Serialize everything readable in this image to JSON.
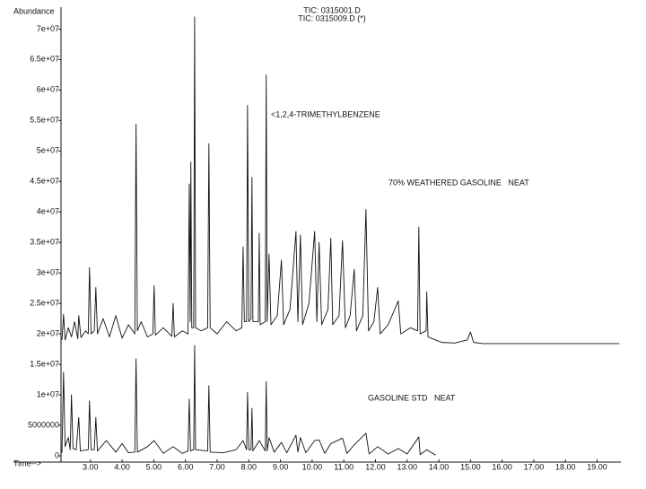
{
  "chart_data": {
    "type": "line",
    "x_label": "Time-->",
    "y_label": "Abundance",
    "annotations": [
      "<1,2,4-TRIMETHYLBENZENE",
      "70% WEATHERED GASOLINE   NEAT",
      "GASOLINE STD   NEAT"
    ],
    "xlim": [
      2.07,
      19.75
    ],
    "ylim": [
      0,
      73000000
    ],
    "xticks": [
      {
        "value": 3,
        "label": "3.00"
      },
      {
        "value": 4,
        "label": "4.00"
      },
      {
        "value": 5,
        "label": "5.00"
      },
      {
        "value": 6,
        "label": "6.00"
      },
      {
        "value": 7,
        "label": "7.00"
      },
      {
        "value": 8,
        "label": "8.00"
      },
      {
        "value": 9,
        "label": "9.00"
      },
      {
        "value": 10,
        "label": "10.00"
      },
      {
        "value": 11,
        "label": "11.00"
      },
      {
        "value": 12,
        "label": "12.00"
      },
      {
        "value": 13,
        "label": "13.00"
      },
      {
        "value": 14,
        "label": "14.00"
      },
      {
        "value": 15,
        "label": "15.00"
      },
      {
        "value": 16,
        "label": "16.00"
      },
      {
        "value": 17,
        "label": "17.00"
      },
      {
        "value": 18,
        "label": "18.00"
      },
      {
        "value": 19,
        "label": "19.00"
      }
    ],
    "yticks": [
      0,
      5000000,
      {
        "value": 10000000,
        "label": "1e+07"
      },
      {
        "value": 15000000,
        "label": "1.5e+07"
      },
      {
        "value": 20000000,
        "label": "2e+07"
      },
      {
        "value": 25000000,
        "label": "2.5e+07"
      },
      {
        "value": 30000000,
        "label": "3e+07"
      },
      {
        "value": 35000000,
        "label": "3.5e+07"
      },
      {
        "value": 40000000,
        "label": "4e+07"
      },
      {
        "value": 45000000,
        "label": "4.5e+07"
      },
      {
        "value": 50000000,
        "label": "5e+07"
      },
      {
        "value": 55000000,
        "label": "5.5e+07"
      },
      {
        "value": 60000000,
        "label": "6e+07"
      },
      {
        "value": 65000000,
        "label": "6.5e+07"
      },
      {
        "value": 70000000,
        "label": "7e+07"
      }
    ],
    "grid": false,
    "series": [
      {
        "name": "TIC: 0315001.D",
        "color": "#111111",
        "x": [
          2.1,
          2.15,
          2.2,
          2.3,
          2.4,
          2.5,
          2.6,
          2.63,
          2.7,
          2.85,
          2.93,
          2.97,
          3.02,
          3.12,
          3.17,
          3.22,
          3.4,
          3.6,
          3.8,
          4.0,
          4.2,
          4.4,
          4.44,
          4.48,
          4.6,
          4.8,
          4.97,
          5.01,
          5.05,
          5.3,
          5.57,
          5.61,
          5.65,
          5.9,
          6.08,
          6.12,
          6.15,
          6.17,
          6.2,
          6.26,
          6.29,
          6.32,
          6.5,
          6.7,
          6.74,
          6.78,
          7.0,
          7.3,
          7.6,
          7.78,
          7.82,
          7.86,
          7.93,
          7.96,
          8.0,
          8.07,
          8.1,
          8.13,
          8.3,
          8.33,
          8.36,
          8.52,
          8.55,
          8.58,
          8.64,
          8.7,
          8.9,
          9.03,
          9.1,
          9.3,
          9.49,
          9.55,
          9.63,
          9.7,
          9.9,
          10.08,
          10.15,
          10.22,
          10.3,
          10.5,
          10.59,
          10.65,
          10.85,
          10.96,
          11.05,
          11.2,
          11.33,
          11.4,
          11.6,
          11.7,
          11.78,
          11.95,
          12.07,
          12.15,
          12.4,
          12.72,
          12.8,
          13.1,
          13.33,
          13.37,
          13.41,
          13.6,
          13.62,
          13.66,
          13.9,
          14.1,
          14.5,
          14.9,
          15.0,
          15.1,
          15.4,
          16,
          17,
          18,
          19.7
        ],
        "values": [
          19000000,
          23200000,
          19000000,
          21000000,
          19500000,
          22000000,
          19200000,
          23000000,
          19400000,
          20500000,
          20000000,
          30900000,
          20000000,
          20500000,
          27600000,
          20000000,
          22500000,
          19500000,
          23000000,
          19300000,
          21500000,
          20000000,
          54400000,
          20500000,
          22000000,
          19500000,
          20000000,
          27900000,
          19800000,
          21000000,
          19600000,
          25000000,
          19500000,
          20500000,
          20000000,
          44600000,
          22000000,
          48200000,
          21000000,
          21000000,
          72000000,
          21000000,
          20500000,
          21000000,
          51200000,
          21000000,
          20000000,
          22000000,
          20500000,
          21000000,
          34300000,
          22000000,
          22000000,
          57500000,
          22000000,
          22500000,
          45700000,
          22000000,
          22000000,
          36500000,
          21500000,
          22000000,
          62500000,
          22000000,
          33100000,
          21500000,
          23000000,
          32100000,
          21500000,
          24000000,
          36800000,
          22000000,
          36200000,
          21500000,
          25000000,
          36800000,
          22000000,
          35000000,
          21500000,
          24000000,
          35700000,
          21500000,
          23000000,
          35300000,
          21000000,
          23000000,
          30600000,
          20500000,
          23000000,
          40400000,
          20500000,
          22000000,
          27600000,
          20000000,
          21500000,
          25400000,
          20000000,
          21000000,
          20500000,
          37500000,
          20000000,
          20500000,
          26900000,
          19500000,
          19000000,
          18600000,
          18500000,
          19000000,
          20300000,
          18600000,
          18400000,
          18400000,
          18400000,
          18400000,
          18400000
        ]
      },
      {
        "name": "TIC: 0315009.D (*)",
        "color": "#111111",
        "x": [
          2.1,
          2.15,
          2.2,
          2.3,
          2.36,
          2.4,
          2.45,
          2.55,
          2.63,
          2.68,
          2.93,
          2.97,
          3.02,
          3.12,
          3.17,
          3.22,
          3.5,
          3.8,
          4.0,
          4.2,
          4.4,
          4.44,
          4.48,
          4.8,
          5.01,
          5.3,
          5.61,
          5.9,
          6.08,
          6.12,
          6.16,
          6.26,
          6.29,
          6.32,
          6.7,
          6.74,
          6.78,
          7.2,
          7.6,
          7.82,
          7.93,
          7.96,
          8.0,
          8.07,
          8.1,
          8.13,
          8.33,
          8.52,
          8.55,
          8.58,
          8.64,
          8.8,
          9.03,
          9.2,
          9.49,
          9.55,
          9.63,
          9.8,
          10.08,
          10.22,
          10.4,
          10.59,
          10.96,
          11.1,
          11.33,
          11.7,
          11.8,
          12.07,
          12.4,
          12.72,
          13.0,
          13.37,
          13.41,
          13.62,
          13.9
        ],
        "values": [
          500000,
          13700000,
          1500000,
          3000000,
          1000000,
          10000000,
          1200000,
          1000000,
          6300000,
          800000,
          1000000,
          9000000,
          1000000,
          1000000,
          6300000,
          800000,
          2500000,
          600000,
          2000000,
          500000,
          600000,
          15900000,
          600000,
          1500000,
          2500000,
          400000,
          1500000,
          400000,
          800000,
          9300000,
          800000,
          1000000,
          18100000,
          1000000,
          800000,
          11500000,
          600000,
          500000,
          1000000,
          2500000,
          1000000,
          10400000,
          1000000,
          1000000,
          7800000,
          800000,
          2500000,
          800000,
          12200000,
          800000,
          3000000,
          600000,
          2200000,
          500000,
          3400000,
          600000,
          3000000,
          500000,
          2500000,
          2600000,
          400000,
          2000000,
          2900000,
          400000,
          1800000,
          3700000,
          300000,
          1500000,
          300000,
          1200000,
          300000,
          3100000,
          200000,
          1000000,
          100000
        ]
      }
    ]
  }
}
